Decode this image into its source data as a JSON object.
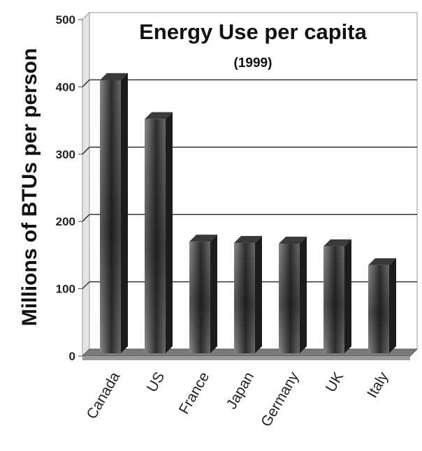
{
  "chart_data": {
    "type": "bar",
    "title": "Energy Use per capita",
    "subtitle": "(1999)",
    "ylabel": "Millions of BTUs per person",
    "xlabel": "",
    "categories": [
      "Canada",
      "US",
      "France",
      "Japan",
      "Germany",
      "UK",
      "Italy"
    ],
    "values": [
      410,
      352,
      170,
      168,
      167,
      163,
      135
    ],
    "ylim": [
      0,
      500
    ],
    "yticks": [
      "0",
      "100",
      "200",
      "300",
      "400",
      "500"
    ],
    "grid": true,
    "style": "3d"
  }
}
